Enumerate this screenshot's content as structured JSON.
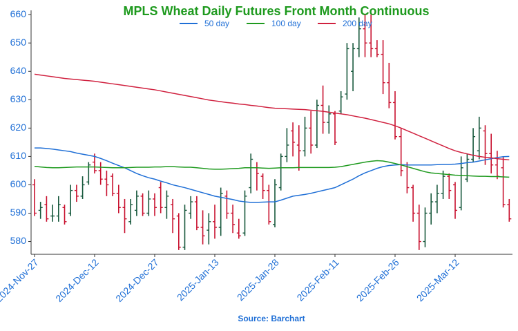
{
  "chart_data": {
    "type": "ohlc",
    "title": "MPLS Wheat Daily Futures Front Month Continuous",
    "source": "Source: Barchart",
    "categories": [
      "2024-Nov-27",
      null,
      null,
      null,
      null,
      null,
      null,
      null,
      null,
      null,
      "2024-Dec-12",
      null,
      null,
      null,
      null,
      null,
      null,
      null,
      null,
      null,
      "2024-Dec-27",
      null,
      null,
      null,
      null,
      null,
      null,
      null,
      null,
      null,
      "2025-Jan-13",
      null,
      null,
      null,
      null,
      null,
      null,
      null,
      null,
      null,
      "2025-Jan-28",
      null,
      null,
      null,
      null,
      null,
      null,
      null,
      null,
      null,
      "2025-Feb-11",
      null,
      null,
      null,
      null,
      null,
      null,
      null,
      null,
      null,
      "2025-Feb-26",
      null,
      null,
      null,
      null,
      null,
      null,
      null,
      null,
      null,
      "2025-Mar-12",
      null,
      null,
      null,
      null,
      null,
      null,
      null,
      null,
      null
    ],
    "open": [
      600,
      591,
      593,
      589,
      589,
      592,
      590,
      598,
      596,
      601,
      608,
      605,
      602,
      603,
      597,
      592,
      587,
      591,
      596,
      590,
      595,
      599,
      592,
      593,
      589,
      578,
      590,
      594,
      585,
      584,
      587,
      585,
      596,
      590,
      583,
      583,
      599,
      606,
      603,
      598,
      586,
      599,
      610,
      619,
      614,
      612,
      620,
      614,
      628,
      622,
      625,
      626,
      632,
      640,
      648,
      655,
      650,
      648,
      646,
      636,
      629,
      617,
      607,
      599,
      590,
      580,
      590,
      594,
      597,
      603,
      600,
      592,
      602,
      609,
      612,
      619,
      611,
      607,
      606,
      593
    ],
    "high": [
      602,
      594,
      596,
      593,
      596,
      593,
      600,
      600,
      603,
      608,
      611,
      608,
      605,
      604,
      600,
      595,
      595,
      598,
      597,
      598,
      597,
      601,
      598,
      595,
      590,
      593,
      596,
      596,
      591,
      590,
      593,
      599,
      598,
      593,
      588,
      598,
      611,
      608,
      604,
      600,
      602,
      611,
      620,
      622,
      621,
      624,
      626,
      630,
      635,
      628,
      626,
      633,
      650,
      650,
      659,
      660,
      660,
      651,
      651,
      643,
      633,
      620,
      608,
      600,
      593,
      592,
      597,
      600,
      605,
      604,
      601,
      610,
      611,
      620,
      624,
      621,
      618,
      612,
      610,
      595
    ],
    "low": [
      589,
      588,
      587,
      587,
      587,
      586,
      589,
      594,
      595,
      600,
      604,
      600,
      596,
      596,
      590,
      583,
      586,
      589,
      589,
      589,
      589,
      590,
      588,
      583,
      577,
      577,
      588,
      584,
      579,
      579,
      581,
      582,
      588,
      583,
      581,
      582,
      597,
      598,
      595,
      586,
      585,
      598,
      608,
      610,
      605,
      610,
      611,
      613,
      618,
      618,
      614,
      625,
      630,
      633,
      645,
      645,
      645,
      645,
      632,
      627,
      616,
      603,
      597,
      587,
      577,
      578,
      586,
      590,
      595,
      595,
      588,
      591,
      601,
      608,
      609,
      607,
      604,
      602,
      592,
      587
    ],
    "close": [
      590,
      592,
      588,
      589,
      593,
      587,
      598,
      596,
      600,
      607,
      605,
      602,
      600,
      597,
      592,
      588,
      593,
      596,
      590,
      595,
      592,
      592,
      596,
      588,
      578,
      591,
      594,
      585,
      582,
      587,
      585,
      597,
      590,
      586,
      582,
      596,
      609,
      604,
      598,
      587,
      600,
      610,
      614,
      615,
      612,
      620,
      614,
      628,
      622,
      625,
      615,
      631,
      648,
      648,
      655,
      650,
      648,
      646,
      636,
      629,
      617,
      605,
      599,
      590,
      580,
      590,
      594,
      597,
      603,
      598,
      591,
      606,
      609,
      617,
      620,
      611,
      607,
      603,
      593,
      588
    ],
    "up_color": "#17583c",
    "down_color": "#c8102e",
    "series": [
      {
        "name": "50 day",
        "color": "#1f6fd6",
        "values": [
          613,
          613,
          612.8,
          612.6,
          612.3,
          612,
          611.7,
          611.2,
          610.8,
          610.4,
          610,
          609.3,
          608.5,
          607.6,
          606.8,
          606,
          605,
          604,
          603.2,
          602.5,
          602,
          601.3,
          600.7,
          600,
          599.5,
          599,
          598.4,
          597.8,
          597.2,
          596.6,
          596,
          595.6,
          595.2,
          594.8,
          594.3,
          594,
          593.8,
          593.8,
          593.9,
          594,
          594,
          594.6,
          595.3,
          596,
          596.3,
          596.6,
          597,
          597.5,
          598,
          598.5,
          599,
          600,
          601,
          602,
          603.2,
          604.2,
          605,
          605.8,
          606.4,
          606.8,
          607,
          607.1,
          607,
          607,
          607,
          607,
          607,
          607.1,
          607.2,
          607.2,
          607.3,
          607.5,
          607.8,
          608,
          608.4,
          608.8,
          609.2,
          609.6,
          609.9,
          610
        ]
      },
      {
        "name": "100 day",
        "color": "#1e9a1e",
        "values": [
          606.5,
          606.3,
          606.1,
          606,
          606,
          606.1,
          606.2,
          606.3,
          606.3,
          606.3,
          606.3,
          606.2,
          606.1,
          606,
          606,
          606,
          606.1,
          606.2,
          606.2,
          606.2,
          606.3,
          606.3,
          606.4,
          606.4,
          606.3,
          606.2,
          606.2,
          606,
          605.8,
          605.6,
          605.5,
          605.5,
          605.6,
          605.7,
          605.8,
          606,
          606,
          606,
          605.9,
          605.8,
          605.9,
          606,
          606,
          606,
          606.1,
          606.1,
          606.1,
          606.1,
          606.1,
          606.1,
          606.2,
          606.4,
          606.8,
          607.2,
          607.6,
          608,
          608.3,
          608.5,
          608.4,
          608,
          607.5,
          607,
          606.4,
          605.8,
          605.2,
          604.6,
          604.2,
          604,
          603.8,
          603.6,
          603.4,
          603.3,
          603.2,
          603.1,
          603,
          603,
          602.9,
          602.9,
          602.8,
          602.7
        ]
      },
      {
        "name": "200 day",
        "color": "#d0213f",
        "values": [
          639,
          638.7,
          638.4,
          638.1,
          637.8,
          637.5,
          637.3,
          637.1,
          636.9,
          636.7,
          636.5,
          636.2,
          635.9,
          635.6,
          635.3,
          635,
          634.7,
          634.4,
          634.1,
          633.8,
          633.5,
          633.1,
          632.7,
          632.3,
          631.9,
          631.5,
          631.1,
          630.7,
          630.3,
          629.9,
          629.6,
          629.3,
          629,
          628.8,
          628.5,
          628.3,
          628,
          627.8,
          627.5,
          627.2,
          627,
          626.9,
          626.8,
          626.7,
          626.6,
          626.5,
          626.3,
          626.1,
          625.9,
          625.6,
          625.3,
          625,
          624.7,
          624.3,
          623.9,
          623.5,
          623,
          622.5,
          622,
          621.5,
          620.8,
          620,
          619.1,
          618.2,
          617.3,
          616.4,
          615.5,
          614.6,
          613.7,
          612.8,
          612,
          611.4,
          610.9,
          610.4,
          610,
          609.7,
          609.5,
          609.2,
          609,
          608.8
        ]
      }
    ],
    "ylim": [
      575.5,
      661.5
    ],
    "yticks": [
      580,
      590,
      600,
      610,
      620,
      630,
      640,
      650,
      660
    ]
  }
}
